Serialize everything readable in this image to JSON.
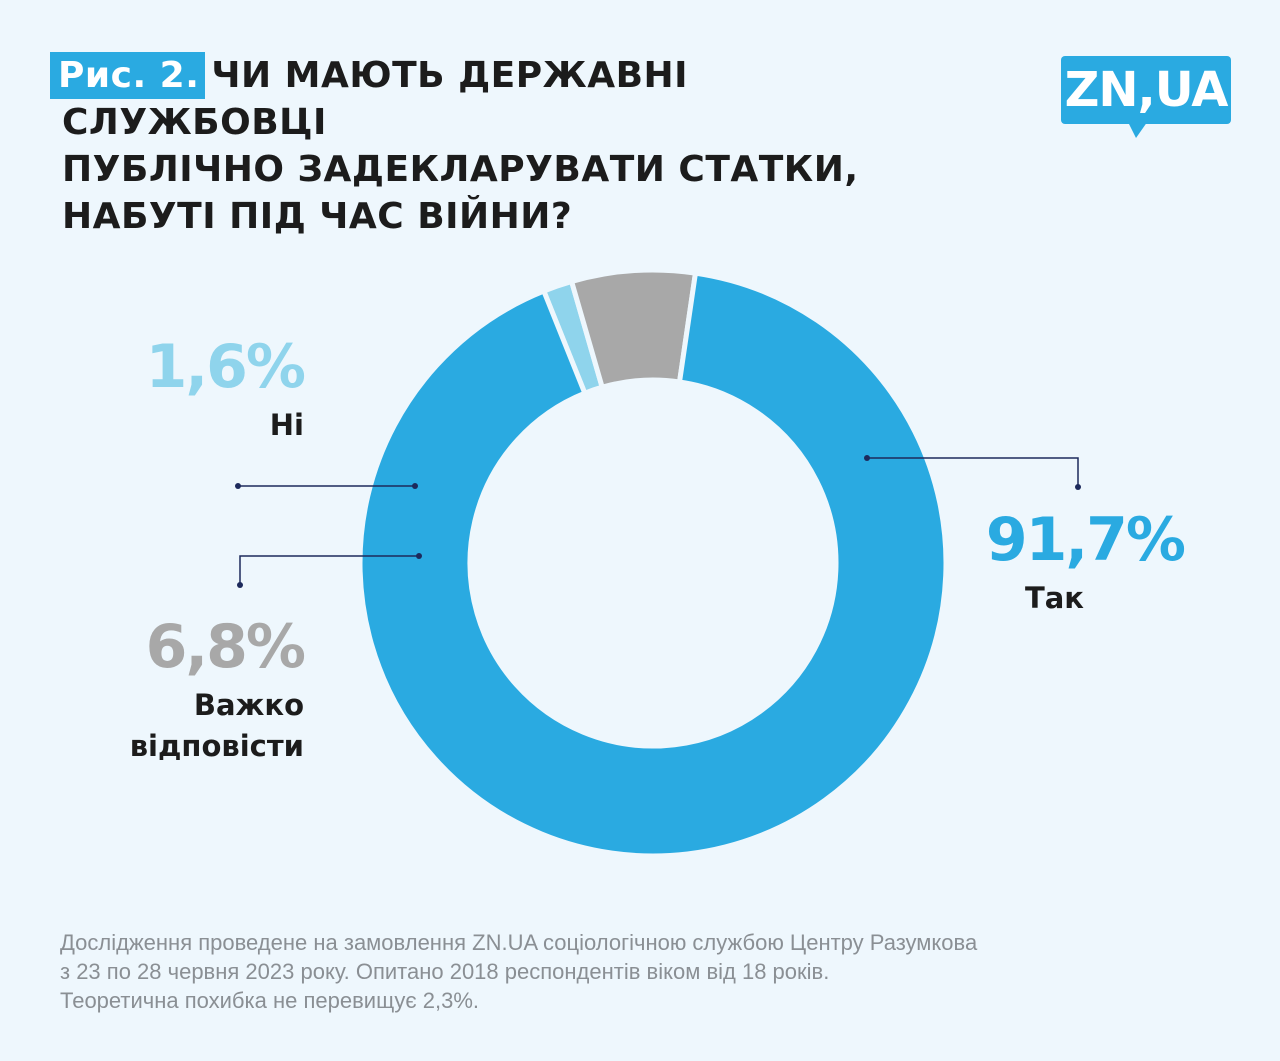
{
  "header": {
    "fig_label": "Рис. 2.",
    "title_lines": [
      "ЧИ МАЮТЬ ДЕРЖАВНІ СЛУЖБОВЦІ",
      "ПУБЛІЧНО ЗАДЕКЛАРУВАТИ СТАТКИ,",
      "НАБУТІ ПІД ЧАС ВІЙНИ?"
    ]
  },
  "logo": {
    "text": "ZN,UA"
  },
  "colors": {
    "accent": "#2aaae1",
    "light": "#8fd4ec",
    "gray": "#a8a8a8",
    "background": "#eef7fd",
    "leader": "#1d2a5c"
  },
  "chart_data": {
    "type": "pie",
    "variant": "donut",
    "categories": [
      "Так",
      "Ні",
      "Важко відповісти"
    ],
    "values": [
      91.7,
      1.6,
      6.8
    ],
    "value_labels": [
      "91,7%",
      "1,6%",
      "6,8%"
    ],
    "colors": [
      "#2aaae1",
      "#8fd4ec",
      "#a8a8a8"
    ],
    "label_colors": [
      "#2aaae1",
      "#8fd4ec",
      "#a8a8a8"
    ]
  },
  "footnote": {
    "lines": [
      "Дослідження проведене на замовлення ZN.UA соціологічною службою Центру Разумкова",
      "з 23 по 28 червня 2023 року. Опитано 2018 респондентів віком від 18 років.",
      "Теоретична похибка не перевищує 2,3%."
    ]
  }
}
